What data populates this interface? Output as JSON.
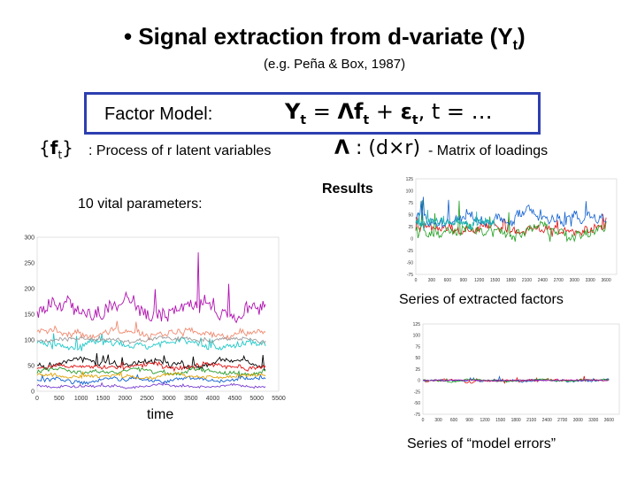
{
  "slide": {
    "title": "Signal extraction from d-variate (Y",
    "title_sub": "t",
    "title_close": ")",
    "citation": "(e.g. Peña & Box, 1987)",
    "model_label": "Factor Model:",
    "f_symbol": "f",
    "f_description": ": Process of  r  latent variables",
    "lambda_description": "- Matrix of loadings",
    "vital_label": "10 vital parameters:",
    "results_label": "Results",
    "factors_caption": "Series of extracted factors",
    "errors_caption": "Series of “model errors”",
    "time_label": "time"
  },
  "chart_data": [
    {
      "type": "line",
      "name": "vital-parameters",
      "title": "",
      "xlabel": "time",
      "ylabel": "",
      "xlim": [
        0,
        5500
      ],
      "ylim": [
        0,
        300
      ],
      "xticks": [
        0,
        500,
        1000,
        1500,
        2000,
        2500,
        3000,
        3500,
        4000,
        4500,
        5000,
        5500
      ],
      "yticks": [
        0,
        50,
        100,
        150,
        200,
        250,
        300
      ],
      "series": [
        {
          "name": "s1",
          "color": "#b012b0",
          "base": 160,
          "amp": 22,
          "spike": 70,
          "x_end": 5200
        },
        {
          "name": "s2",
          "color": "#f08a70",
          "base": 115,
          "amp": 10,
          "spike": 25,
          "x_end": 5200
        },
        {
          "name": "s3",
          "color": "#20c8c8",
          "base": 92,
          "amp": 10,
          "spike": 20,
          "x_end": 5200
        },
        {
          "name": "s4",
          "color": "#9a9a9a",
          "base": 100,
          "amp": 6,
          "spike": 5,
          "x_end": 5200
        },
        {
          "name": "s5",
          "color": "#000000",
          "base": 55,
          "amp": 9,
          "spike": 15,
          "x_end": 5200
        },
        {
          "name": "s6",
          "color": "#e01010",
          "base": 48,
          "amp": 7,
          "spike": 10,
          "x_end": 5200
        },
        {
          "name": "s7",
          "color": "#2a9a2a",
          "base": 38,
          "amp": 7,
          "spike": 12,
          "x_end": 5200
        },
        {
          "name": "s8",
          "color": "#1060d0",
          "base": 22,
          "amp": 6,
          "spike": 8,
          "x_end": 5200
        },
        {
          "name": "s9",
          "color": "#e0a000",
          "base": 30,
          "amp": 5,
          "spike": 6,
          "x_end": 5200
        },
        {
          "name": "s10",
          "color": "#7a3fd0",
          "base": 10,
          "amp": 4,
          "spike": 4,
          "x_end": 5200
        }
      ]
    },
    {
      "type": "line",
      "name": "extracted-factors",
      "title": "",
      "xlim": [
        0,
        3800
      ],
      "ylim": [
        -75,
        125
      ],
      "xticks": [
        0,
        300,
        600,
        900,
        1200,
        1500,
        1800,
        2100,
        2400,
        2700,
        3000,
        3300,
        3600
      ],
      "yticks": [
        -75,
        -50,
        -25,
        0,
        25,
        50,
        75,
        100,
        125
      ],
      "series": [
        {
          "name": "f1",
          "color": "#e01010",
          "base": 20,
          "amp": 14,
          "spike": 20,
          "x_end": 3600
        },
        {
          "name": "f2",
          "color": "#20a020",
          "base": 15,
          "amp": 20,
          "spike": 45,
          "x_end": 3600
        },
        {
          "name": "f3",
          "color": "#1060d0",
          "base": 40,
          "amp": 18,
          "spike": 30,
          "x_end": 3600
        },
        {
          "name": "f4",
          "color": "#20b0b0",
          "base": 35,
          "amp": 12,
          "spike": 20,
          "x_end": 1500
        }
      ]
    },
    {
      "type": "line",
      "name": "model-errors",
      "title": "",
      "xlim": [
        0,
        3800
      ],
      "ylim": [
        -75,
        125
      ],
      "xticks": [
        0,
        300,
        600,
        900,
        1200,
        1500,
        1800,
        2100,
        2400,
        2700,
        3000,
        3300,
        3600
      ],
      "yticks": [
        -75,
        -50,
        -25,
        0,
        25,
        50,
        75,
        100,
        125
      ],
      "series": [
        {
          "name": "e1",
          "color": "#e01010",
          "base": 0,
          "amp": 4,
          "spike": 6,
          "x_end": 3600
        },
        {
          "name": "e2",
          "color": "#1060d0",
          "base": 0,
          "amp": 3,
          "spike": 5,
          "x_end": 3600
        },
        {
          "name": "e3",
          "color": "#20a020",
          "base": 0,
          "amp": 3,
          "spike": 4,
          "x_end": 3600
        },
        {
          "name": "e4",
          "color": "#b012b0",
          "base": 0,
          "amp": 2,
          "spike": 3,
          "x_end": 3600
        }
      ]
    }
  ]
}
